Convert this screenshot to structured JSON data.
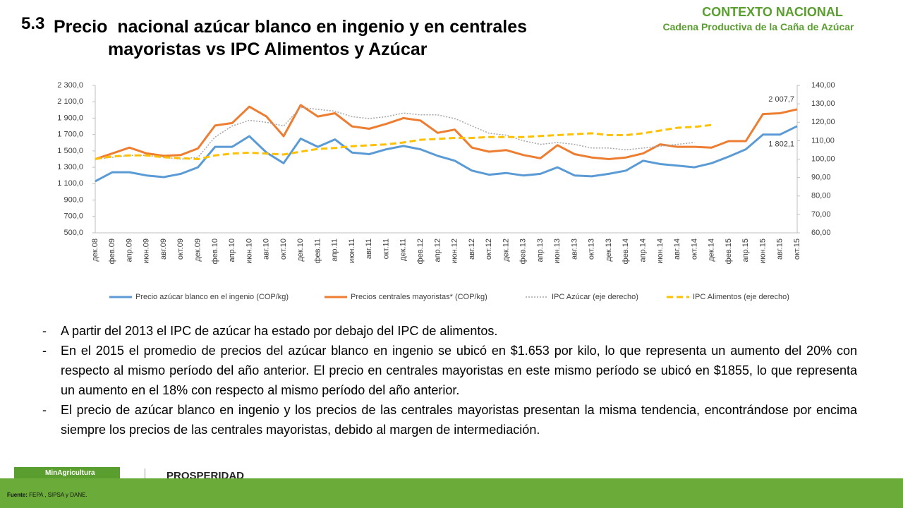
{
  "slide": {
    "number": "5.3",
    "title_line1": "Precio  nacional azúcar blanco en ingenio y en centrales",
    "title_line2": "mayoristas vs IPC Alimentos y Azúcar",
    "header_main": "CONTEXTO NACIONAL",
    "header_sub": "Cadena Productiva de la Caña de Azúcar",
    "bullets": [
      "A partir del 2013 el IPC de azúcar ha estado por debajo del IPC de alimentos.",
      "En el 2015 el promedio de precios del azúcar blanco en ingenio se ubicó en $1.653 por kilo, lo que representa un aumento del 20% con respecto al mismo período del año anterior. El precio  en centrales mayoristas en este mismo período se ubicó en $1855, lo que representa un aumento en el 18% con respecto al mismo período del año anterior.",
      "El precio de azúcar blanco en ingenio y los precios de las centrales mayoristas presentan la misma tendencia, encontrándose por encima siempre los precios de las centrales mayoristas, debido al margen de intermediación."
    ],
    "source_label": "Fuente:",
    "source": " FEPA , SIPSA y DANE.",
    "logo1": "MinAgricultura",
    "logo2": "PROSPERIDAD"
  },
  "chart_data": {
    "type": "line",
    "legend": "bottom",
    "categories": [
      "дек.08",
      "фев.09",
      "апр.09",
      "июн.09",
      "авг.09",
      "окт.09",
      "дек.09",
      "фев.10",
      "апр.10",
      "июн.10",
      "авг.10",
      "окт.10",
      "дек.10",
      "фев.11",
      "апр.11",
      "июн.11",
      "авг.11",
      "окт.11",
      "дек.11",
      "фев.12",
      "апр.12",
      "июн.12",
      "авг.12",
      "окт.12",
      "дек.12",
      "фев.13",
      "апр.13",
      "июн.13",
      "авг.13",
      "окт.13",
      "дек.13",
      "фев.14",
      "апр.14",
      "июн.14",
      "авг.14",
      "окт.14",
      "дек.14",
      "фев.15",
      "апр.15",
      "июн.15",
      "авг.15",
      "окт.15"
    ],
    "ylim": [
      500,
      2300
    ],
    "yticks": [
      {
        "value": 500,
        "label": "500,0"
      },
      {
        "value": 700,
        "label": "700,0"
      },
      {
        "value": 900,
        "label": "900,0"
      },
      {
        "value": 1100,
        "label": "1 100,0"
      },
      {
        "value": 1300,
        "label": "1 300,0"
      },
      {
        "value": 1500,
        "label": "1 500,0"
      },
      {
        "value": 1700,
        "label": "1 700,0"
      },
      {
        "value": 1900,
        "label": "1 900,0"
      },
      {
        "value": 2100,
        "label": "2 100,0"
      },
      {
        "value": 2300,
        "label": "2 300,0"
      }
    ],
    "y2lim": [
      60,
      140
    ],
    "y2ticks": [
      {
        "value": 60,
        "label": "60,00"
      },
      {
        "value": 70,
        "label": "70,00"
      },
      {
        "value": 80,
        "label": "80,00"
      },
      {
        "value": 90,
        "label": "90,00"
      },
      {
        "value": 100,
        "label": "100,00"
      },
      {
        "value": 110,
        "label": "110,00"
      },
      {
        "value": 120,
        "label": "120,00"
      },
      {
        "value": 130,
        "label": "130,00"
      },
      {
        "value": 140,
        "label": "140,00"
      }
    ],
    "series": [
      {
        "name": "Precio azúcar blanco en el ingenio (COP/kg)",
        "color": "#5b9bd5",
        "style": "solid",
        "values": [
          1130,
          1240,
          1240,
          1200,
          1180,
          1220,
          1300,
          1550,
          1550,
          1680,
          1480,
          1350,
          1650,
          1550,
          1640,
          1480,
          1460,
          1520,
          1560,
          1520,
          1440,
          1380,
          1260,
          1210,
          1230,
          1200,
          1220,
          1300,
          1200,
          1190,
          1220,
          1260,
          1380,
          1340,
          1320,
          1300,
          1350,
          1430,
          1520,
          1700,
          1700,
          1802.1
        ],
        "value_labels": [
          null,
          null,
          null,
          null,
          null,
          null,
          null,
          null,
          null,
          null,
          null,
          null,
          null,
          null,
          null,
          null,
          null,
          null,
          null,
          null,
          null,
          null,
          null,
          null,
          null,
          null,
          null,
          null,
          null,
          null,
          null,
          null,
          null,
          null,
          null,
          null,
          null,
          null,
          null,
          null,
          null,
          "1 802,1"
        ]
      },
      {
        "name": "Precios centrales mayoristas* (COP/kg)",
        "color": "#ed7d31",
        "style": "solid",
        "values": [
          1400,
          1470,
          1540,
          1470,
          1440,
          1450,
          1530,
          1810,
          1840,
          2040,
          1920,
          1680,
          2060,
          1920,
          1960,
          1800,
          1770,
          1830,
          1900,
          1870,
          1720,
          1760,
          1540,
          1490,
          1510,
          1450,
          1410,
          1570,
          1460,
          1420,
          1400,
          1420,
          1470,
          1580,
          1550,
          1550,
          1540,
          1620,
          1620,
          1950,
          1960,
          2007.7
        ],
        "value_labels": [
          null,
          null,
          null,
          null,
          null,
          null,
          null,
          null,
          null,
          null,
          null,
          null,
          null,
          null,
          null,
          null,
          null,
          null,
          null,
          null,
          null,
          null,
          null,
          null,
          null,
          null,
          null,
          null,
          null,
          null,
          null,
          null,
          null,
          null,
          null,
          null,
          null,
          null,
          null,
          null,
          null,
          "2 007,7"
        ]
      },
      {
        "name": "IPC Azúcar (eje derecho)",
        "color": "#a5a5a5",
        "style": "dotted",
        "axis": "y2",
        "values": [
          100,
          101,
          102,
          102,
          101,
          100,
          101,
          112,
          118,
          121,
          120,
          118,
          128,
          127,
          126,
          123,
          122,
          123,
          125,
          124,
          124,
          122,
          118,
          114,
          113,
          110,
          108,
          109,
          108,
          106,
          106,
          105,
          106,
          107,
          108,
          109,
          null,
          null,
          null,
          null,
          null,
          null
        ]
      },
      {
        "name": "IPC Alimentos (eje derecho)",
        "color": "#ffc000",
        "style": "dashed",
        "axis": "y2",
        "values": [
          100,
          101.5,
          102,
          102,
          101,
          100.5,
          100,
          102,
          103,
          103.5,
          103,
          102.5,
          104,
          105.5,
          106,
          107,
          107.5,
          108,
          109,
          110.5,
          111,
          111.5,
          111.5,
          112,
          112,
          112,
          112.5,
          113,
          113.5,
          114,
          113,
          113,
          114,
          115.5,
          117,
          117.5,
          118.5,
          null,
          null,
          null,
          null,
          null
        ]
      }
    ]
  }
}
